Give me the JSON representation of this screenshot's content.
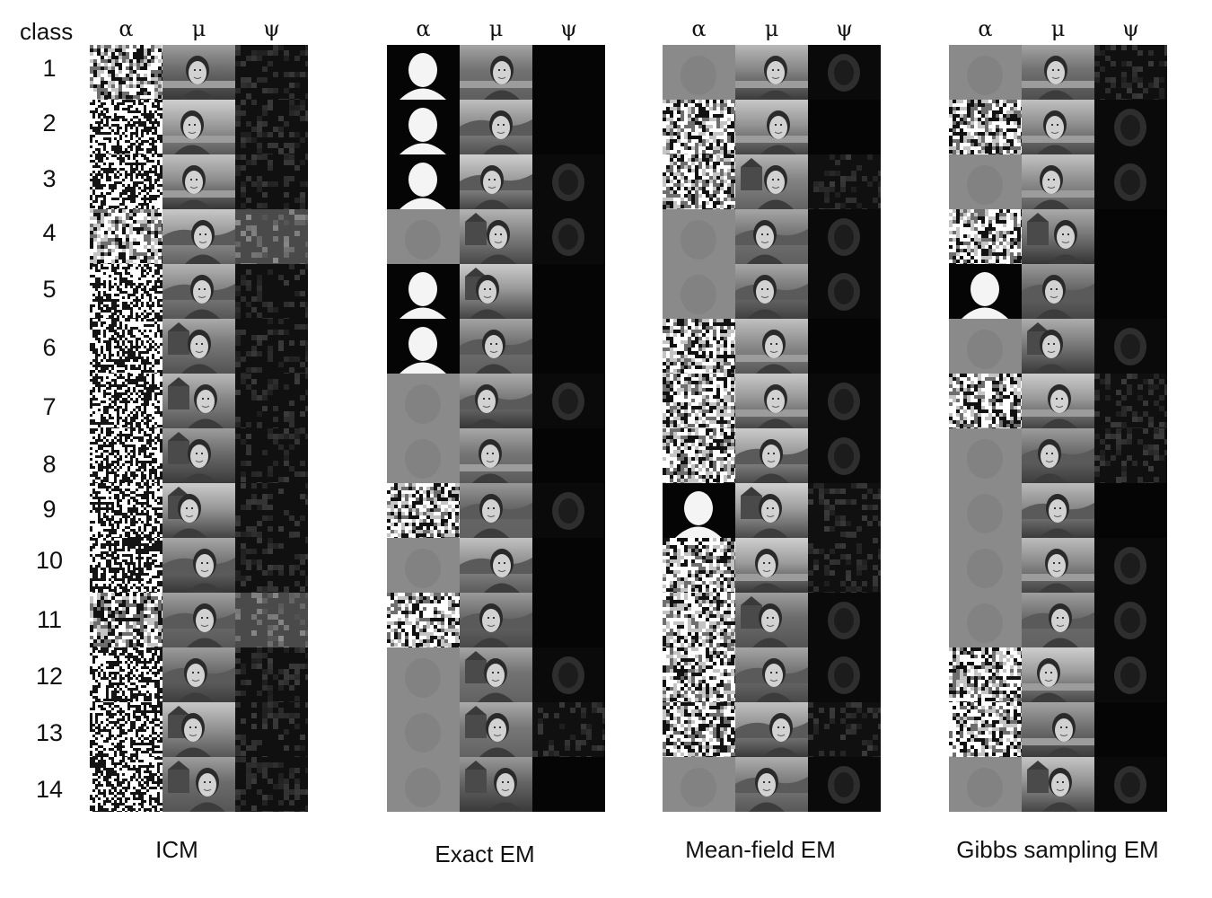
{
  "row_header_label": "class",
  "column_symbols": [
    "α",
    "μ",
    "ψ"
  ],
  "class_numbers": [
    "1",
    "2",
    "3",
    "4",
    "5",
    "6",
    "7",
    "8",
    "9",
    "10",
    "11",
    "12",
    "13",
    "14"
  ],
  "panels": [
    {
      "title": "ICM",
      "alpha_style": [
        "mixed",
        "noise",
        "noise",
        "mixed",
        "noise",
        "noise",
        "noise",
        "noise",
        "noise",
        "noise",
        "mixed",
        "noise",
        "noise",
        "noise"
      ],
      "psi_level": [
        "dark",
        "dark",
        "dark",
        "mid",
        "dark",
        "dark",
        "dark",
        "dark",
        "dark",
        "dark",
        "mid",
        "dark",
        "dark",
        "dark"
      ]
    },
    {
      "title": "Exact EM",
      "alpha_style": [
        "blob",
        "blob",
        "blob",
        "gray",
        "blob",
        "blob",
        "gray",
        "gray",
        "mixed",
        "gray",
        "mixed",
        "gray",
        "gray",
        "gray"
      ],
      "psi_level": [
        "black",
        "black",
        "face",
        "face",
        "black",
        "black",
        "face",
        "black",
        "face",
        "black",
        "black",
        "face",
        "dark",
        "black"
      ]
    },
    {
      "title": "Mean-field EM",
      "alpha_style": [
        "gray",
        "mixed",
        "mixed",
        "gray",
        "gray",
        "mixed",
        "mixed",
        "mixed",
        "blob",
        "mixed",
        "mixed",
        "mixed",
        "mixed",
        "gray"
      ],
      "psi_level": [
        "face",
        "black",
        "dark",
        "face",
        "face",
        "black",
        "face",
        "face",
        "dark",
        "dark",
        "face",
        "face",
        "dark",
        "face"
      ]
    },
    {
      "title": "Gibbs sampling EM",
      "alpha_style": [
        "gray",
        "mixed",
        "gray",
        "mixed",
        "blob",
        "gray",
        "mixed",
        "gray",
        "gray",
        "gray",
        "gray",
        "mixed",
        "mixed",
        "gray"
      ],
      "psi_level": [
        "dark",
        "face",
        "face",
        "black",
        "black",
        "face",
        "dark",
        "dark",
        "black",
        "face",
        "face",
        "face",
        "black",
        "face"
      ]
    }
  ]
}
